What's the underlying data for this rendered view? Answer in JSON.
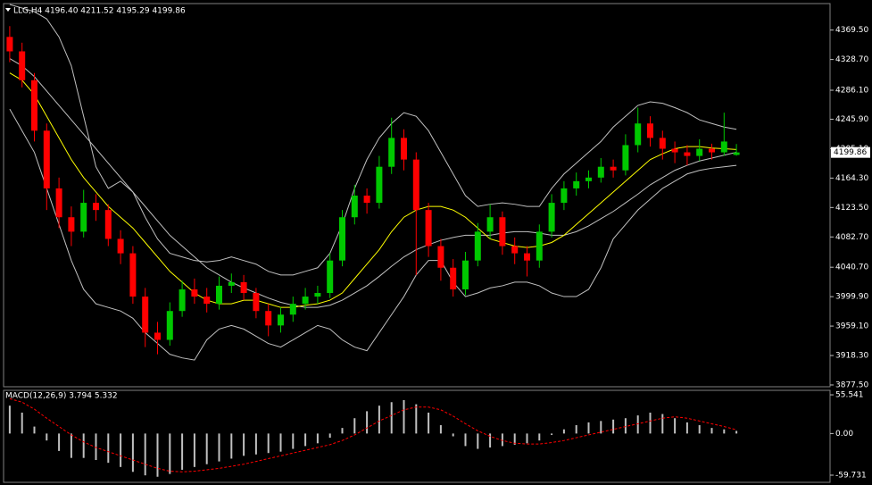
{
  "chart_data": [
    {
      "type": "candlestick",
      "title": "LLG,H4 4196.40 4211.52 4195.29 4199.86",
      "up_color": "#00c800",
      "down_color": "#ff0000",
      "open": [
        4360,
        4340,
        4300,
        4230,
        4150,
        4110,
        4090,
        4130,
        4120,
        4080,
        4060,
        4000,
        3950,
        3940,
        3980,
        4010,
        4000,
        3990,
        4015,
        4020,
        4005,
        3980,
        3960,
        3975,
        3990,
        4000,
        4005,
        4050,
        4110,
        4140,
        4130,
        4180,
        4220,
        4190,
        4120,
        4070,
        4040,
        4010,
        4050,
        4090,
        4110,
        4070,
        4060,
        4050,
        4090,
        4130,
        4150,
        4160,
        4165,
        4180,
        4175,
        4210,
        4240,
        4220,
        4205,
        4200,
        4195,
        4205,
        4200,
        4196.4
      ],
      "high": [
        4375,
        4352,
        4310,
        4240,
        4165,
        4125,
        4148,
        4142,
        4128,
        4092,
        4070,
        4012,
        3965,
        3992,
        4022,
        4025,
        4012,
        4028,
        4032,
        4030,
        4012,
        3990,
        3985,
        4000,
        4012,
        4015,
        4060,
        4120,
        4155,
        4150,
        4195,
        4248,
        4232,
        4200,
        4130,
        4080,
        4052,
        4062,
        4102,
        4128,
        4118,
        4082,
        4070,
        4100,
        4142,
        4160,
        4172,
        4175,
        4192,
        4190,
        4225,
        4262,
        4250,
        4230,
        4215,
        4210,
        4218,
        4212,
        4255,
        4211.52
      ],
      "low": [
        4325,
        4290,
        4215,
        4120,
        4095,
        4070,
        4082,
        4105,
        4070,
        4045,
        3990,
        3930,
        3920,
        3932,
        3972,
        3990,
        3978,
        3982,
        4005,
        3995,
        3970,
        3945,
        3950,
        3965,
        3982,
        3990,
        3998,
        4042,
        4100,
        4115,
        4122,
        4170,
        4175,
        4030,
        4055,
        4022,
        4000,
        4002,
        4042,
        4080,
        4058,
        4045,
        4028,
        4040,
        4082,
        4120,
        4140,
        4150,
        4158,
        4165,
        4168,
        4200,
        4208,
        4190,
        4185,
        4182,
        4188,
        4190,
        4195,
        4195.29
      ],
      "close": [
        4340,
        4300,
        4230,
        4150,
        4110,
        4090,
        4130,
        4120,
        4080,
        4060,
        4000,
        3950,
        3940,
        3980,
        4010,
        4000,
        3990,
        4015,
        4020,
        4005,
        3980,
        3960,
        3975,
        3990,
        4000,
        4005,
        4050,
        4110,
        4140,
        4130,
        4180,
        4220,
        4190,
        4120,
        4070,
        4040,
        4010,
        4050,
        4090,
        4110,
        4070,
        4060,
        4050,
        4090,
        4130,
        4150,
        4160,
        4165,
        4180,
        4175,
        4210,
        4240,
        4220,
        4205,
        4200,
        4195,
        4205,
        4200,
        4215,
        4199.86
      ],
      "overlays": [
        {
          "color": "#c0c0c0",
          "values": [
            4405,
            4400,
            4395,
            4385,
            4360,
            4320,
            4250,
            4180,
            4150,
            4160,
            4145,
            4110,
            4080,
            4060,
            4055,
            4050,
            4048,
            4050,
            4055,
            4050,
            4045,
            4035,
            4030,
            4030,
            4035,
            4040,
            4060,
            4100,
            4150,
            4190,
            4220,
            4240,
            4255,
            4250,
            4230,
            4200,
            4170,
            4140,
            4125,
            4128,
            4130,
            4128,
            4125,
            4125,
            4150,
            4170,
            4185,
            4200,
            4215,
            4235,
            4250,
            4265,
            4270,
            4268,
            4262,
            4255,
            4245,
            4240,
            4235,
            4232
          ]
        },
        {
          "color": "#c0c0c0",
          "values": [
            4330,
            4320,
            4305,
            4285,
            4265,
            4245,
            4225,
            4205,
            4185,
            4165,
            4145,
            4125,
            4105,
            4085,
            4070,
            4055,
            4040,
            4030,
            4020,
            4012,
            4005,
            3998,
            3992,
            3988,
            3985,
            3985,
            3988,
            3995,
            4005,
            4015,
            4028,
            4042,
            4055,
            4065,
            4072,
            4078,
            4082,
            4085,
            4085,
            4085,
            4088,
            4090,
            4090,
            4088,
            4085,
            4085,
            4090,
            4098,
            4108,
            4118,
            4130,
            4142,
            4155,
            4165,
            4175,
            4182,
            4188,
            4192,
            4196,
            4200
          ]
        },
        {
          "color": "#c0c0c0",
          "values": [
            4260,
            4230,
            4200,
            4150,
            4100,
            4050,
            4010,
            3990,
            3985,
            3980,
            3970,
            3950,
            3935,
            3920,
            3915,
            3912,
            3940,
            3955,
            3960,
            3955,
            3945,
            3935,
            3930,
            3940,
            3950,
            3960,
            3955,
            3940,
            3930,
            3925,
            3950,
            3975,
            4000,
            4030,
            4050,
            4050,
            4020,
            4000,
            4005,
            4012,
            4015,
            4020,
            4020,
            4015,
            4005,
            4000,
            4000,
            4010,
            4040,
            4080,
            4100,
            4120,
            4135,
            4150,
            4160,
            4170,
            4175,
            4178,
            4180,
            4182
          ]
        },
        {
          "color": "#ffff00",
          "values": [
            4310,
            4300,
            4280,
            4250,
            4220,
            4190,
            4165,
            4145,
            4125,
            4110,
            4095,
            4075,
            4055,
            4035,
            4020,
            4005,
            3995,
            3990,
            3990,
            3995,
            3995,
            3990,
            3985,
            3985,
            3988,
            3990,
            3995,
            4005,
            4025,
            4045,
            4065,
            4090,
            4110,
            4120,
            4125,
            4125,
            4120,
            4110,
            4095,
            4080,
            4075,
            4070,
            4068,
            4070,
            4075,
            4085,
            4100,
            4115,
            4130,
            4145,
            4160,
            4175,
            4190,
            4198,
            4205,
            4208,
            4208,
            4206,
            4205,
            4204
          ]
        }
      ],
      "last_price": 4199.86,
      "ylim": [
        3875,
        4405
      ],
      "yticks": [
        {
          "value": 4369.5,
          "label": "4369.50"
        },
        {
          "value": 4328.7,
          "label": "4328.70"
        },
        {
          "value": 4286.1,
          "label": "4286.10"
        },
        {
          "value": 4245.9,
          "label": "4245.90"
        },
        {
          "value": 4205.1,
          "label": "4205.10"
        },
        {
          "value": 4164.3,
          "label": "4164.30"
        },
        {
          "value": 4123.5,
          "label": "4123.50"
        },
        {
          "value": 4082.7,
          "label": "4082.70"
        },
        {
          "value": 4040.7,
          "label": "4040.70"
        },
        {
          "value": 3999.9,
          "label": "3999.90"
        },
        {
          "value": 3959.1,
          "label": "3959.10"
        },
        {
          "value": 3918.3,
          "label": "3918.30"
        },
        {
          "value": 3877.5,
          "label": "3877.50"
        }
      ]
    },
    {
      "type": "macd",
      "title": "MACD(12,26,9) 3.794 5.332",
      "color": "#c0c0c0",
      "signal_color": "#ff0000",
      "values": [
        40,
        30,
        10,
        -10,
        -25,
        -35,
        -35,
        -38,
        -42,
        -48,
        -55,
        -60,
        -62,
        -58,
        -52,
        -48,
        -44,
        -40,
        -36,
        -32,
        -30,
        -28,
        -26,
        -22,
        -18,
        -14,
        -6,
        8,
        22,
        32,
        40,
        45,
        48,
        42,
        30,
        12,
        -4,
        -18,
        -22,
        -20,
        -18,
        -16,
        -14,
        -10,
        -2,
        6,
        12,
        16,
        18,
        20,
        22,
        26,
        30,
        28,
        22,
        16,
        12,
        8,
        6,
        3.794
      ],
      "signal": [
        50,
        45,
        35,
        22,
        10,
        -2,
        -12,
        -20,
        -26,
        -32,
        -38,
        -44,
        -50,
        -54,
        -55,
        -54,
        -52,
        -50,
        -47,
        -44,
        -40,
        -36,
        -32,
        -28,
        -24,
        -20,
        -16,
        -10,
        -2,
        8,
        18,
        26,
        34,
        38,
        38,
        34,
        25,
        14,
        4,
        -4,
        -10,
        -14,
        -15,
        -15,
        -13,
        -10,
        -6,
        -2,
        2,
        6,
        10,
        14,
        18,
        22,
        24,
        22,
        18,
        14,
        10,
        5.332
      ],
      "ylim": [
        -70,
        62
      ],
      "yticks": [
        55.541,
        {
          "value": 0,
          "label": "0.00"
        },
        -59.731
      ]
    }
  ]
}
